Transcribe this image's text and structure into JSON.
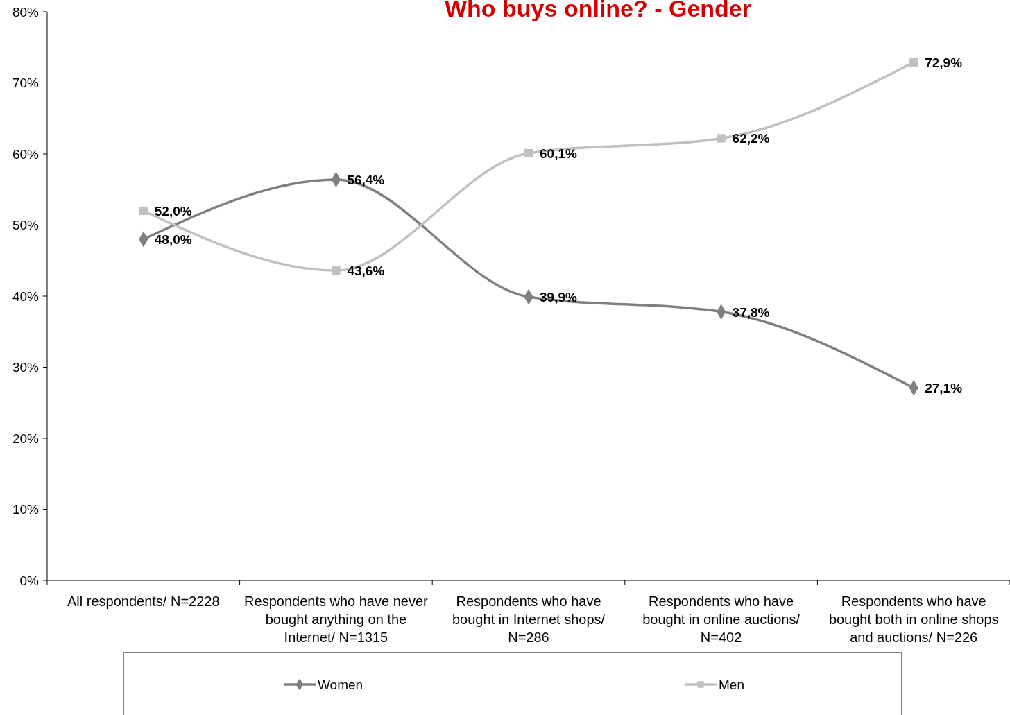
{
  "chart_data": {
    "type": "line",
    "title": "Who buys online? - Gender",
    "categories": [
      "All respondents/ N=2228",
      "Respondents who have never bought anything on the Internet/ N=1315",
      "Respondents who have bought in Internet shops/ N=286",
      "Respondents who have bought in online auctions/ N=402",
      "Respondents who have bought both in online shops and auctions/ N=226"
    ],
    "series": [
      {
        "name": "Women",
        "color": "#7f7f7f",
        "marker": "diamond",
        "values": [
          48.0,
          56.4,
          39.9,
          37.8,
          27.1
        ],
        "value_labels": [
          "48,0%",
          "56,4%",
          "39,9%",
          "37,8%",
          "27,1%"
        ]
      },
      {
        "name": "Men",
        "color": "#c0c0c0",
        "marker": "square",
        "values": [
          52.0,
          43.6,
          60.1,
          62.2,
          72.9
        ],
        "value_labels": [
          "52,0%",
          "43,6%",
          "60,1%",
          "62,2%",
          "72,9%"
        ]
      }
    ],
    "ylim": [
      0,
      80
    ],
    "yticks": [
      {
        "value": 0,
        "label": "0%"
      },
      {
        "value": 10,
        "label": "10%"
      },
      {
        "value": 20,
        "label": "20%"
      },
      {
        "value": 30,
        "label": "30%"
      },
      {
        "value": 40,
        "label": "40%"
      },
      {
        "value": 50,
        "label": "50%"
      },
      {
        "value": 60,
        "label": "60%"
      },
      {
        "value": 70,
        "label": "70%"
      },
      {
        "value": 80,
        "label": "80%"
      }
    ],
    "grid": false,
    "legend": "bottom",
    "line_style": "solid"
  }
}
